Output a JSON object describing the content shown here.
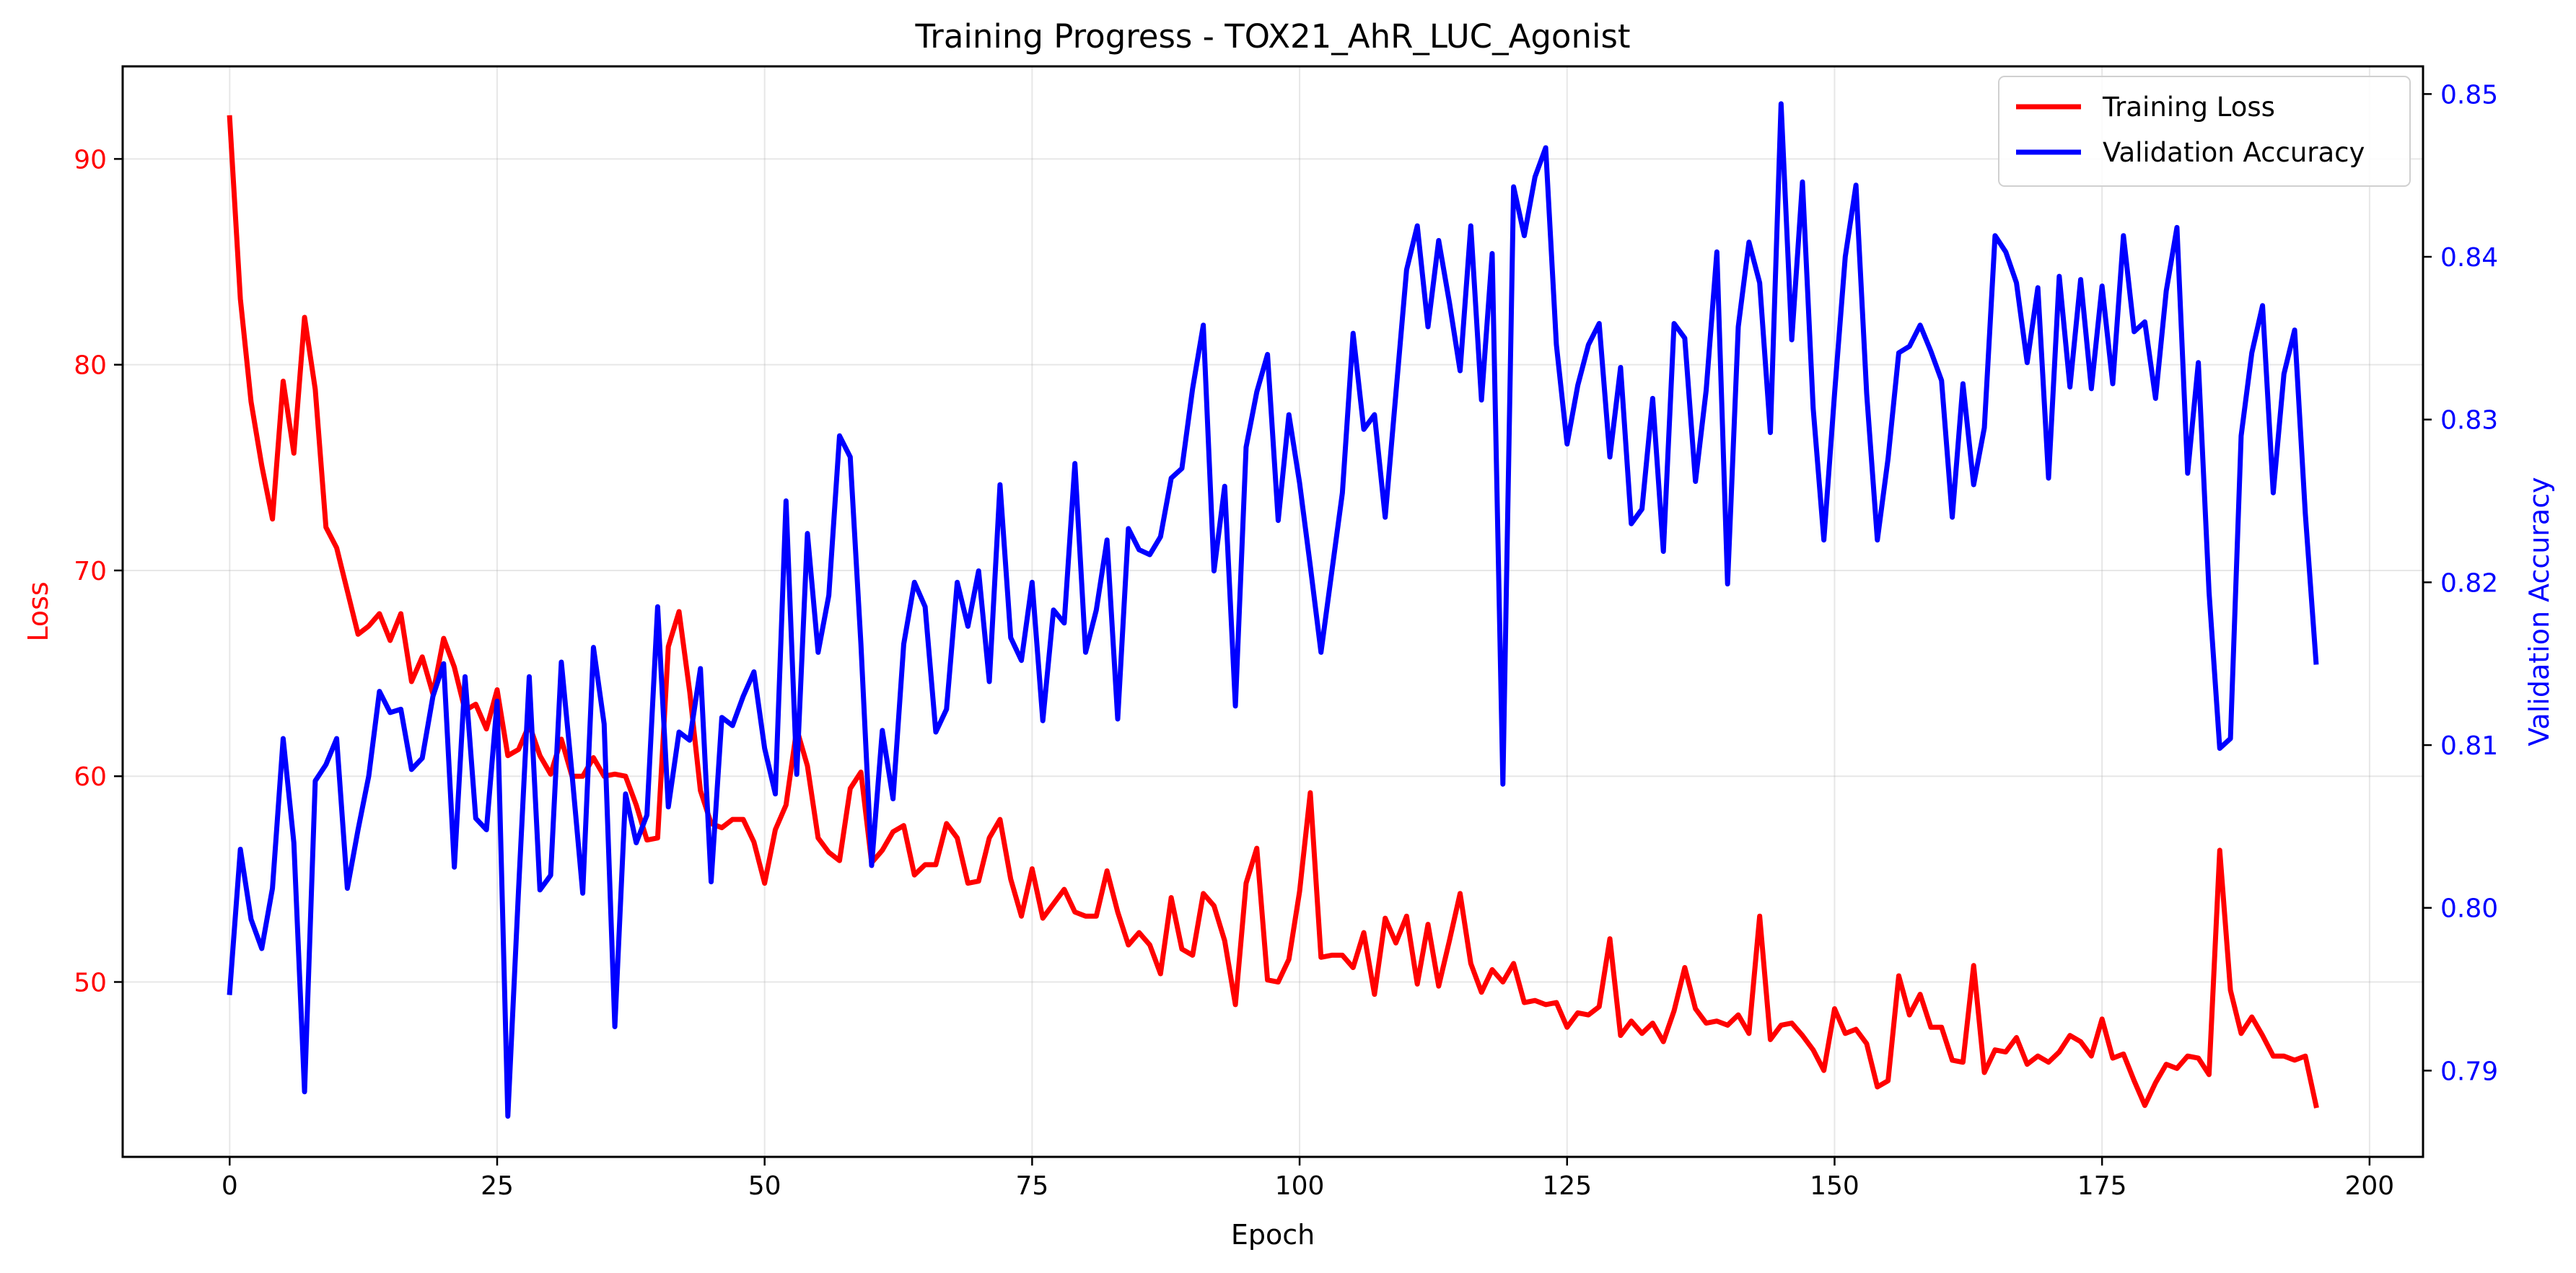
{
  "chart_data": {
    "type": "line",
    "title": "Training Progress - TOX21_AhR_LUC_Agonist",
    "xlabel": "Epoch",
    "ylabel_left": "Loss",
    "ylabel_right": "Validation Accuracy",
    "xlim": [
      -10,
      205
    ],
    "ylim_left": [
      41.5,
      94.5
    ],
    "ylim_right": [
      0.7847,
      0.8517
    ],
    "x_ticks": [
      0,
      25,
      50,
      75,
      100,
      125,
      150,
      175,
      200
    ],
    "y_ticks_left": [
      50,
      60,
      70,
      80,
      90
    ],
    "y_ticks_right": [
      0.79,
      0.8,
      0.81,
      0.82,
      0.83,
      0.84,
      0.85
    ],
    "grid": true,
    "legend_position": "top-right",
    "series": [
      {
        "name": "Training Loss",
        "axis": "left",
        "color": "#ff0000",
        "values": [
          92.0,
          83.2,
          78.2,
          75.1,
          72.5,
          79.2,
          75.7,
          82.3,
          78.8,
          72.1,
          71.1,
          69.0,
          66.9,
          67.3,
          67.9,
          66.6,
          67.9,
          64.6,
          65.8,
          64.0,
          66.7,
          65.3,
          63.2,
          63.5,
          62.3,
          64.2,
          61.0,
          61.3,
          62.5,
          61.0,
          60.1,
          61.8,
          60.0,
          60.0,
          60.9,
          60.0,
          60.1,
          60.0,
          58.6,
          56.9,
          57.0,
          66.3,
          68.0,
          64.1,
          59.3,
          57.7,
          57.5,
          57.9,
          57.9,
          56.8,
          54.8,
          57.4,
          58.6,
          62.3,
          60.5,
          57.0,
          56.3,
          55.9,
          59.4,
          60.2,
          55.8,
          56.4,
          57.3,
          57.6,
          55.2,
          55.7,
          55.7,
          57.7,
          57.0,
          54.8,
          54.9,
          57.0,
          57.9,
          55.0,
          53.2,
          55.5,
          53.1,
          53.8,
          54.5,
          53.4,
          53.2,
          53.2,
          55.4,
          53.4,
          51.8,
          52.4,
          51.8,
          50.4,
          54.1,
          51.6,
          51.3,
          54.3,
          53.7,
          52.0,
          48.9,
          54.8,
          56.5,
          50.1,
          50.0,
          51.1,
          54.4,
          59.2,
          51.2,
          51.3,
          51.3,
          50.7,
          52.4,
          49.4,
          53.1,
          51.9,
          53.2,
          49.9,
          52.8,
          49.8,
          52.0,
          54.3,
          50.9,
          49.5,
          50.6,
          50.0,
          50.9,
          49.0,
          49.1,
          48.9,
          49.0,
          47.8,
          48.5,
          48.4,
          48.8,
          52.1,
          47.4,
          48.1,
          47.5,
          48.0,
          47.1,
          48.6,
          50.7,
          48.7,
          48.0,
          48.1,
          47.9,
          48.4,
          47.5,
          53.2,
          47.2,
          47.9,
          48.0,
          47.4,
          46.7,
          45.7,
          48.7,
          47.5,
          47.7,
          47.0,
          44.9,
          45.2,
          50.3,
          48.4,
          49.4,
          47.8,
          47.8,
          46.2,
          46.1,
          50.8,
          45.6,
          46.7,
          46.6,
          47.3,
          46.0,
          46.4,
          46.1,
          46.6,
          47.4,
          47.1,
          46.4,
          48.2,
          46.3,
          46.5,
          45.2,
          44.0,
          45.1,
          46.0,
          45.8,
          46.4,
          46.3,
          45.5,
          56.4,
          49.6,
          47.5,
          48.3,
          47.4,
          46.4,
          46.4,
          46.2,
          46.4,
          44.0
        ]
      },
      {
        "name": "Validation Accuracy",
        "axis": "right",
        "color": "#0000ff",
        "values": [
          0.7948,
          0.8036,
          0.7993,
          0.7975,
          0.8012,
          0.8104,
          0.804,
          0.7887,
          0.8078,
          0.8088,
          0.8104,
          0.8012,
          0.8048,
          0.8081,
          0.8133,
          0.812,
          0.8122,
          0.8085,
          0.8092,
          0.813,
          0.815,
          0.8025,
          0.8142,
          0.8055,
          0.8048,
          0.8127,
          0.7872,
          0.8011,
          0.8142,
          0.8011,
          0.802,
          0.8151,
          0.8082,
          0.8009,
          0.816,
          0.8113,
          0.7927,
          0.807,
          0.804,
          0.8057,
          0.8185,
          0.8062,
          0.8108,
          0.8103,
          0.8147,
          0.8016,
          0.8117,
          0.8112,
          0.813,
          0.8145,
          0.8098,
          0.807,
          0.825,
          0.8082,
          0.823,
          0.8157,
          0.8192,
          0.829,
          0.8277,
          0.8162,
          0.8026,
          0.8109,
          0.8067,
          0.8162,
          0.82,
          0.8185,
          0.8108,
          0.8122,
          0.82,
          0.8173,
          0.8207,
          0.8139,
          0.826,
          0.8166,
          0.8152,
          0.82,
          0.8115,
          0.8183,
          0.8175,
          0.8273,
          0.8157,
          0.8183,
          0.8226,
          0.8116,
          0.8233,
          0.822,
          0.8217,
          0.8228,
          0.8264,
          0.827,
          0.8319,
          0.8358,
          0.8207,
          0.8259,
          0.8124,
          0.8283,
          0.8317,
          0.834,
          0.8238,
          0.8303,
          0.8261,
          0.821,
          0.8157,
          0.8206,
          0.8255,
          0.8353,
          0.8294,
          0.8303,
          0.824,
          0.8316,
          0.8392,
          0.8419,
          0.8357,
          0.841,
          0.8372,
          0.833,
          0.8419,
          0.8312,
          0.8402,
          0.8076,
          0.8443,
          0.8413,
          0.8449,
          0.8467,
          0.8346,
          0.8285,
          0.8321,
          0.8346,
          0.8359,
          0.8277,
          0.8332,
          0.8236,
          0.8245,
          0.8313,
          0.8219,
          0.8359,
          0.835,
          0.8262,
          0.8318,
          0.8403,
          0.8199,
          0.8357,
          0.8409,
          0.8384,
          0.8292,
          0.8494,
          0.8349,
          0.8446,
          0.8307,
          0.8226,
          0.8316,
          0.84,
          0.8444,
          0.8316,
          0.8226,
          0.8276,
          0.8341,
          0.8345,
          0.8358,
          0.8342,
          0.8324,
          0.824,
          0.8322,
          0.826,
          0.8295,
          0.8413,
          0.8403,
          0.8384,
          0.8335,
          0.8381,
          0.8264,
          0.8388,
          0.832,
          0.8386,
          0.8319,
          0.8382,
          0.8322,
          0.8413,
          0.8354,
          0.836,
          0.8313,
          0.8379,
          0.8418,
          0.8267,
          0.8335,
          0.8194,
          0.8098,
          0.8104,
          0.829,
          0.8341,
          0.837,
          0.8255,
          0.8328,
          0.8355,
          0.8242,
          0.8151
        ]
      }
    ]
  }
}
